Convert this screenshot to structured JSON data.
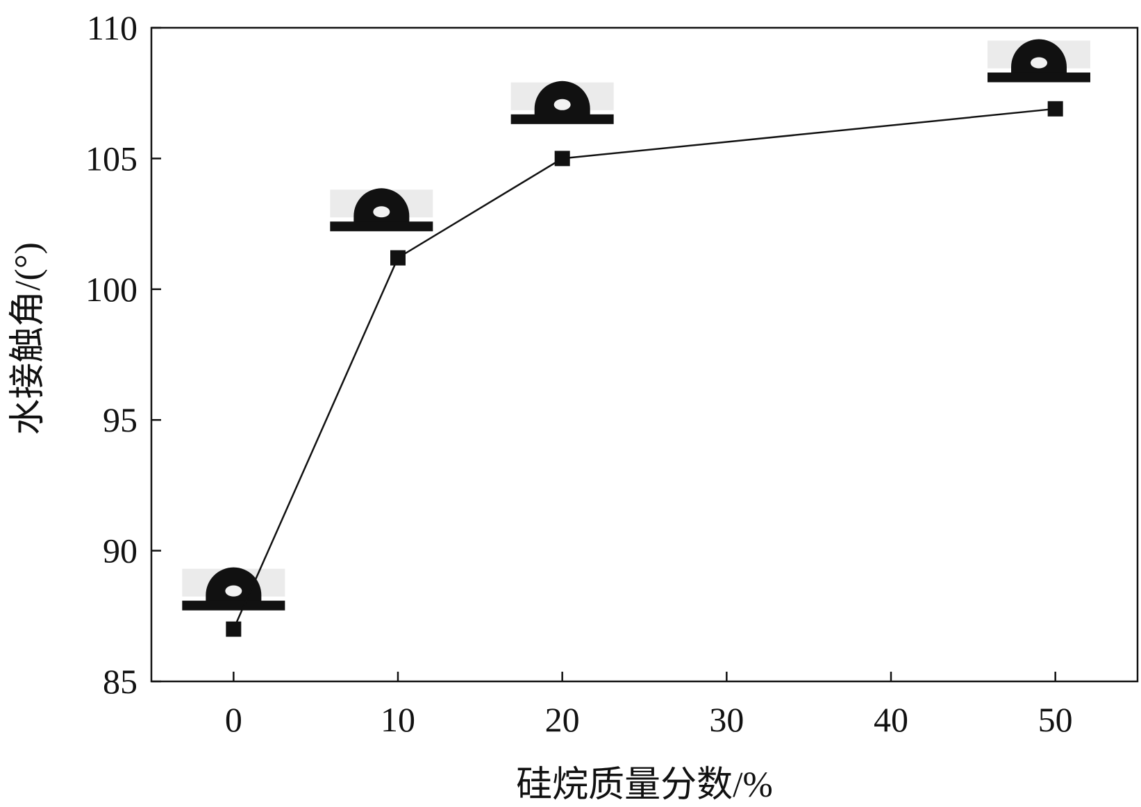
{
  "chart_data": {
    "type": "line",
    "title": "",
    "xlabel": "硅烷质量分数/%",
    "ylabel": "水接触角/(°)",
    "x": [
      0,
      10,
      20,
      50
    ],
    "series": [
      {
        "values": [
          87.0,
          101.2,
          105.0,
          106.9
        ],
        "marker": "square",
        "color": "#111111"
      }
    ],
    "xlim": [
      -5,
      55
    ],
    "ylim": [
      85,
      110
    ],
    "xticks": [
      0,
      10,
      20,
      30,
      40,
      50
    ],
    "yticks": [
      85,
      90,
      95,
      100,
      105,
      110
    ],
    "xtick_labels": [
      "0",
      "10",
      "20",
      "30",
      "40",
      "50"
    ],
    "ytick_labels": [
      "85",
      "90",
      "95",
      "100",
      "105",
      "110"
    ],
    "grid": false,
    "legend": "none",
    "annotations": [
      {
        "kind": "droplet-image",
        "x": 0,
        "y": 88.3
      },
      {
        "kind": "droplet-image",
        "x": 9,
        "y": 102.8
      },
      {
        "kind": "droplet-image",
        "x": 20,
        "y": 106.9
      },
      {
        "kind": "droplet-image",
        "x": 49,
        "y": 108.5
      }
    ]
  }
}
